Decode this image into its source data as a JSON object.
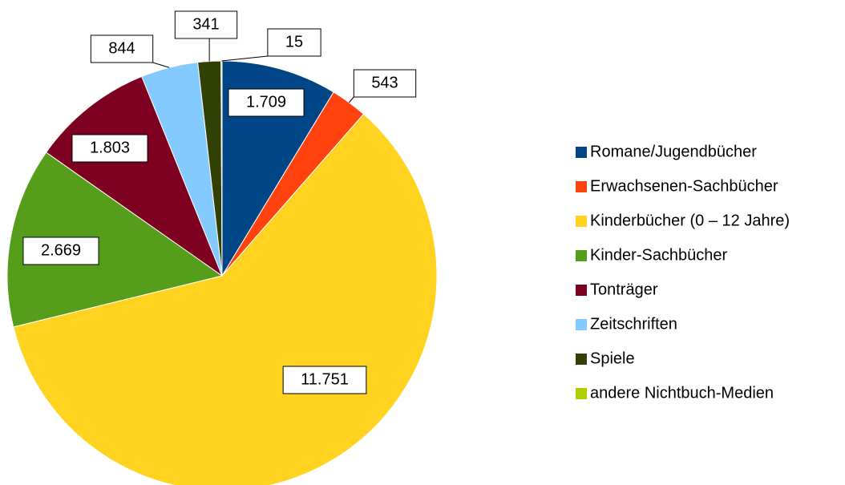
{
  "chart_data": {
    "type": "pie",
    "categories": [
      "Romane/Jugendbücher",
      "Erwachsenen-Sachbücher",
      "Kinderbücher (0 – 12 Jahre)",
      "Kinder-Sachbücher",
      "Tonträger",
      "Zeitschriften",
      "Spiele",
      "andere Nichtbuch-Medien"
    ],
    "values": [
      1709,
      543,
      11751,
      2669,
      1803,
      844,
      341,
      15
    ],
    "value_labels": [
      "1.709",
      "543",
      "11.751",
      "2.669",
      "1.803",
      "844",
      "341",
      "15"
    ],
    "colors": [
      "#004586",
      "#ff420e",
      "#ffd320",
      "#579d1c",
      "#7e0021",
      "#83caff",
      "#314004",
      "#aecf00"
    ],
    "legend": "right"
  }
}
